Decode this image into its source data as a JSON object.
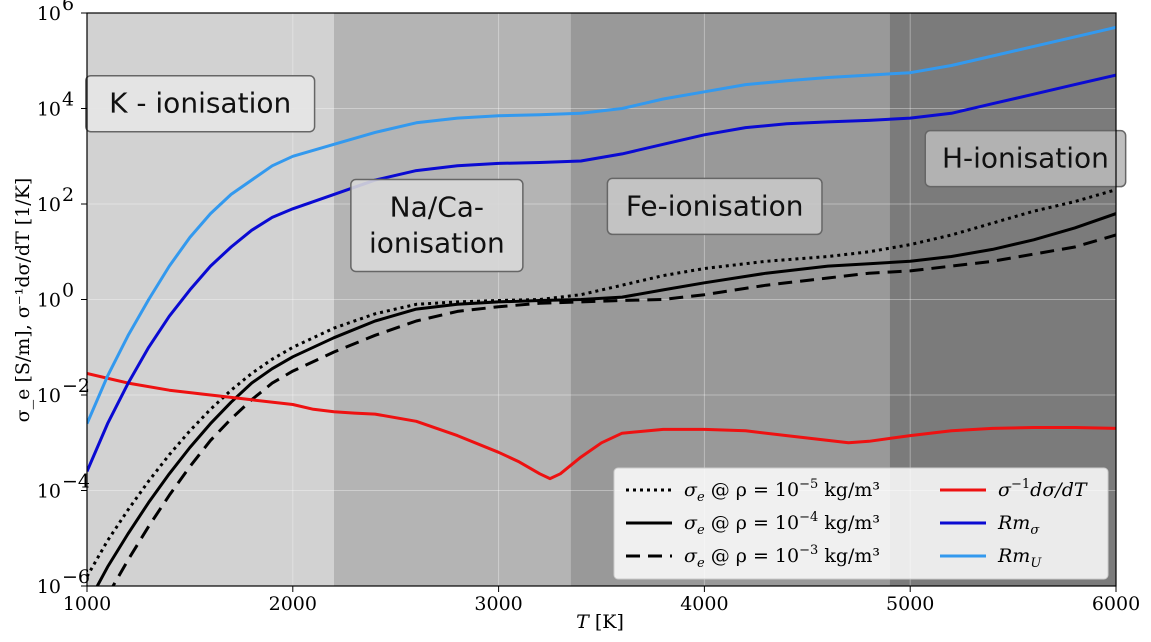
{
  "chart_data": {
    "type": "line",
    "xlabel_main": "T",
    "xlabel_unit": " [K]",
    "ylabel": "σ_e [S/m], σ⁻¹dσ/dT [1/K]",
    "xlim": [
      1000,
      6000
    ],
    "ylim_log10": [
      -6,
      6
    ],
    "yscale": "log",
    "grid": true,
    "legend_position": "lower-right",
    "x_ticks": [
      {
        "value": 1000,
        "label": "1000"
      },
      {
        "value": 2000,
        "label": "2000"
      },
      {
        "value": 3000,
        "label": "3000"
      },
      {
        "value": 4000,
        "label": "4000"
      },
      {
        "value": 5000,
        "label": "5000"
      },
      {
        "value": 6000,
        "label": "6000"
      }
    ],
    "y_ticks": [
      {
        "exp": -6,
        "label": "10",
        "sup": "−6"
      },
      {
        "exp": -4,
        "label": "10",
        "sup": "−4"
      },
      {
        "exp": -2,
        "label": "10",
        "sup": "−2"
      },
      {
        "exp": 0,
        "label": "10",
        "sup": "0"
      },
      {
        "exp": 2,
        "label": "10",
        "sup": "2"
      },
      {
        "exp": 4,
        "label": "10",
        "sup": "4"
      },
      {
        "exp": 6,
        "label": "10",
        "sup": "6"
      }
    ],
    "regions": [
      {
        "x0": 1000,
        "x1": 2200,
        "color": "#d2d2d2"
      },
      {
        "x0": 2200,
        "x1": 3350,
        "color": "#b4b4b4"
      },
      {
        "x0": 3350,
        "x1": 4900,
        "color": "#999999"
      },
      {
        "x0": 4900,
        "x1": 6000,
        "color": "#7b7b7b"
      }
    ],
    "region_labels": [
      {
        "lines": [
          "K - ionisation"
        ],
        "x": 1550,
        "log10y": 4.1,
        "bg": "#e6e6e6"
      },
      {
        "lines": [
          "Na/Ca-",
          "ionisation"
        ],
        "x": 2700,
        "log10y": 1.55,
        "bg": "#d8d8d8"
      },
      {
        "lines": [
          "Fe-ionisation"
        ],
        "x": 4050,
        "log10y": 1.95,
        "bg": "#c8c8c8"
      },
      {
        "lines": [
          "H-ionisation"
        ],
        "x": 5560,
        "log10y": 2.95,
        "bg": "#b8b8b8"
      }
    ],
    "series": [
      {
        "name": "σ_e @ ρ = 10⁻⁵ kg/m³",
        "color": "#000000",
        "dash": "3,4",
        "width": 3,
        "x": [
          1000,
          1100,
          1200,
          1300,
          1400,
          1500,
          1600,
          1700,
          1800,
          1900,
          2000,
          2200,
          2400,
          2600,
          2800,
          3000,
          3200,
          3400,
          3600,
          3800,
          4000,
          4300,
          4600,
          4800,
          5000,
          5200,
          5400,
          5600,
          5800,
          6000
        ],
        "log10y": [
          -5.8,
          -5.05,
          -4.4,
          -3.8,
          -3.25,
          -2.75,
          -2.3,
          -1.9,
          -1.55,
          -1.25,
          -1.0,
          -0.6,
          -0.3,
          -0.1,
          -0.05,
          -0.02,
          0.0,
          0.1,
          0.3,
          0.5,
          0.65,
          0.8,
          0.9,
          1.0,
          1.15,
          1.35,
          1.6,
          1.85,
          2.05,
          2.3
        ]
      },
      {
        "name": "σ_e @ ρ = 10⁻⁴ kg/m³",
        "color": "#000000",
        "dash": "",
        "width": 3,
        "x": [
          1000,
          1100,
          1200,
          1300,
          1400,
          1500,
          1600,
          1700,
          1800,
          1900,
          2000,
          2200,
          2400,
          2600,
          2800,
          3000,
          3200,
          3400,
          3600,
          3800,
          4000,
          4300,
          4600,
          4800,
          5000,
          5200,
          5400,
          5600,
          5800,
          6000
        ],
        "log10y": [
          -6.4,
          -5.6,
          -4.9,
          -4.25,
          -3.65,
          -3.1,
          -2.6,
          -2.15,
          -1.75,
          -1.45,
          -1.2,
          -0.8,
          -0.45,
          -0.2,
          -0.1,
          -0.05,
          -0.02,
          0.0,
          0.05,
          0.2,
          0.35,
          0.55,
          0.7,
          0.75,
          0.8,
          0.9,
          1.05,
          1.25,
          1.5,
          1.8
        ]
      },
      {
        "name": "σ_e @ ρ = 10⁻³ kg/m³",
        "color": "#000000",
        "dash": "14,8",
        "width": 3,
        "x": [
          1000,
          1100,
          1200,
          1300,
          1400,
          1500,
          1600,
          1700,
          1800,
          1900,
          2000,
          2200,
          2400,
          2600,
          2800,
          3000,
          3200,
          3400,
          3600,
          3800,
          4000,
          4300,
          4600,
          4800,
          5000,
          5200,
          5400,
          5600,
          5800,
          6000
        ],
        "log10y": [
          -7.0,
          -6.2,
          -5.45,
          -4.75,
          -4.1,
          -3.5,
          -2.95,
          -2.5,
          -2.1,
          -1.75,
          -1.5,
          -1.1,
          -0.75,
          -0.45,
          -0.25,
          -0.15,
          -0.08,
          -0.05,
          -0.02,
          0.0,
          0.1,
          0.3,
          0.45,
          0.55,
          0.6,
          0.7,
          0.8,
          0.95,
          1.1,
          1.35
        ]
      },
      {
        "name": "σ⁻¹dσ/dT",
        "color": "#ee1111",
        "dash": "",
        "width": 3,
        "x": [
          1000,
          1200,
          1400,
          1600,
          1800,
          2000,
          2100,
          2200,
          2300,
          2400,
          2600,
          2800,
          3000,
          3100,
          3200,
          3250,
          3300,
          3400,
          3500,
          3600,
          3800,
          4000,
          4200,
          4400,
          4600,
          4700,
          4800,
          5000,
          5200,
          5400,
          5600,
          5800,
          6000
        ],
        "log10y": [
          -1.55,
          -1.75,
          -1.9,
          -2.0,
          -2.1,
          -2.2,
          -2.3,
          -2.35,
          -2.38,
          -2.4,
          -2.55,
          -2.85,
          -3.2,
          -3.4,
          -3.65,
          -3.75,
          -3.65,
          -3.3,
          -3.0,
          -2.8,
          -2.72,
          -2.72,
          -2.75,
          -2.85,
          -2.95,
          -3.0,
          -2.97,
          -2.85,
          -2.75,
          -2.7,
          -2.68,
          -2.68,
          -2.7
        ]
      },
      {
        "name": "Rm_σ",
        "color": "#0a0ad2",
        "dash": "",
        "width": 3,
        "x": [
          1000,
          1100,
          1200,
          1300,
          1400,
          1500,
          1600,
          1700,
          1800,
          1900,
          2000,
          2200,
          2400,
          2600,
          2800,
          3000,
          3200,
          3400,
          3600,
          3800,
          4000,
          4200,
          4400,
          4600,
          4800,
          5000,
          5200,
          5400,
          5600,
          5800,
          6000
        ],
        "log10y": [
          -3.6,
          -2.6,
          -1.75,
          -1.0,
          -0.35,
          0.2,
          0.7,
          1.1,
          1.45,
          1.72,
          1.9,
          2.2,
          2.5,
          2.7,
          2.8,
          2.85,
          2.87,
          2.9,
          3.05,
          3.25,
          3.45,
          3.6,
          3.68,
          3.72,
          3.75,
          3.8,
          3.9,
          4.1,
          4.3,
          4.5,
          4.7
        ]
      },
      {
        "name": "Rm_U",
        "color": "#3399ee",
        "dash": "",
        "width": 3,
        "x": [
          1000,
          1100,
          1200,
          1300,
          1400,
          1500,
          1600,
          1700,
          1800,
          1900,
          2000,
          2200,
          2400,
          2600,
          2800,
          3000,
          3200,
          3400,
          3600,
          3800,
          4000,
          4200,
          4400,
          4600,
          4800,
          5000,
          5200,
          5400,
          5600,
          5800,
          6000
        ],
        "log10y": [
          -2.6,
          -1.6,
          -0.75,
          0.0,
          0.7,
          1.3,
          1.8,
          2.2,
          2.5,
          2.8,
          3.0,
          3.25,
          3.5,
          3.7,
          3.8,
          3.85,
          3.87,
          3.9,
          4.0,
          4.2,
          4.35,
          4.5,
          4.58,
          4.65,
          4.7,
          4.75,
          4.9,
          5.1,
          5.3,
          5.5,
          5.7
        ]
      }
    ],
    "legend": [
      {
        "series": 0,
        "pre": "σ",
        "sub": "e",
        "mid": " @ ρ = 10",
        "sup": "−5",
        "post": " kg/m³"
      },
      {
        "series": 1,
        "pre": "σ",
        "sub": "e",
        "mid": " @ ρ = 10",
        "sup": "−4",
        "post": " kg/m³"
      },
      {
        "series": 2,
        "pre": "σ",
        "sub": "e",
        "mid": " @ ρ = 10",
        "sup": "−3",
        "post": " kg/m³"
      },
      {
        "series": 3,
        "pre": "σ",
        "sub": "",
        "mid": "",
        "sup": "−1",
        "post": "dσ/dT"
      },
      {
        "series": 4,
        "pre": "Rm",
        "sub": "σ",
        "mid": "",
        "sup": "",
        "post": ""
      },
      {
        "series": 5,
        "pre": "Rm",
        "sub": "U",
        "mid": "",
        "sup": "",
        "post": ""
      }
    ]
  }
}
